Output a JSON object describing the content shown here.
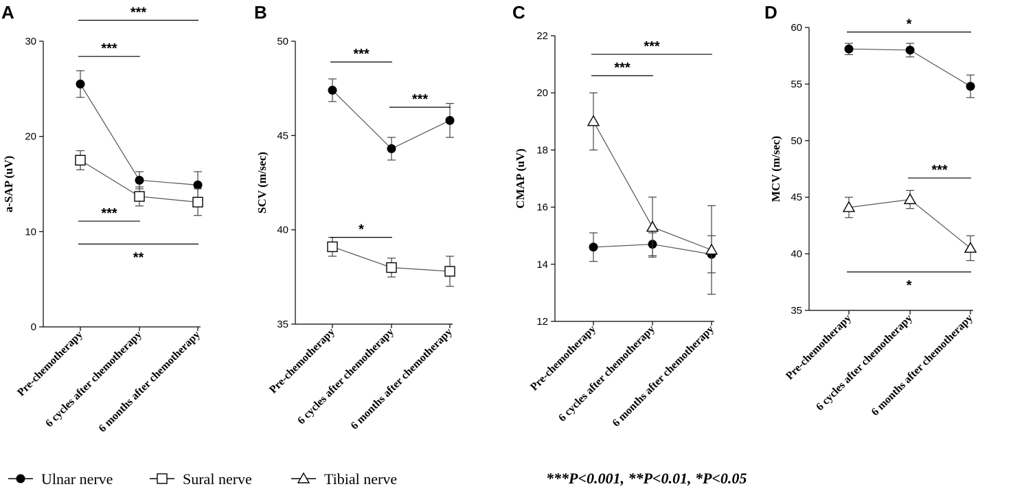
{
  "p_note": "***P<0.001, **P<0.01, *P<0.05",
  "legend": [
    {
      "name": "Ulnar nerve",
      "marker": "circle"
    },
    {
      "name": "Sural nerve",
      "marker": "square"
    },
    {
      "name": "Tibial nerve",
      "marker": "triangle"
    }
  ],
  "chart_data": [
    {
      "panel": "A",
      "type": "line",
      "title": "",
      "ylabel": "a-SAP  (uV)",
      "xlabel": "",
      "categories": [
        "Pre-chemotherapy",
        "6 cycles after chemotherapy",
        "6 months after chemotherapy"
      ],
      "ylim": [
        0,
        30
      ],
      "yticks": [
        0,
        10,
        20,
        30
      ],
      "series": [
        {
          "name": "Ulnar nerve",
          "marker": "circle",
          "values": [
            25.5,
            15.4,
            14.9
          ],
          "errors": [
            1.4,
            0.9,
            1.4
          ]
        },
        {
          "name": "Sural nerve",
          "marker": "square",
          "values": [
            17.5,
            13.7,
            13.1
          ],
          "errors": [
            1.0,
            1.0,
            1.4
          ]
        }
      ],
      "significance": [
        {
          "from": 0,
          "to": 2,
          "label": "***",
          "ref_value": 32.2
        },
        {
          "from": 0,
          "to": 1,
          "label": "***",
          "ref_value": 28.4
        },
        {
          "from": 0,
          "to": 1,
          "label": "***",
          "ref_value": 11.1
        },
        {
          "from": 0,
          "to": 2,
          "label": "**",
          "ref_value": 8.7
        }
      ]
    },
    {
      "panel": "B",
      "type": "line",
      "title": "",
      "ylabel": "SCV  (m/sec)",
      "xlabel": "",
      "categories": [
        "Pre-chemotherapy",
        "6 cycles after chemotherapy",
        "6 months after chemotherapy"
      ],
      "ylim": [
        35,
        50
      ],
      "yticks": [
        35,
        40,
        45,
        50
      ],
      "series": [
        {
          "name": "Ulnar nerve",
          "marker": "circle",
          "values": [
            47.4,
            44.3,
            45.8
          ],
          "errors": [
            0.6,
            0.6,
            0.9
          ]
        },
        {
          "name": "Sural nerve",
          "marker": "square",
          "values": [
            39.1,
            38.0,
            37.8
          ],
          "errors": [
            0.5,
            0.5,
            0.8
          ]
        }
      ],
      "significance": [
        {
          "from": 0,
          "to": 1,
          "label": "***",
          "ref_value": 48.9
        },
        {
          "from": 1,
          "to": 2,
          "label": "***",
          "ref_value": 46.5
        },
        {
          "from": 0,
          "to": 1,
          "label": "*",
          "ref_value": 39.6
        }
      ]
    },
    {
      "panel": "C",
      "type": "line",
      "title": "",
      "ylabel": "CMAP  (uV)",
      "xlabel": "",
      "categories": [
        "Pre-chemotherapy",
        "6 cycles after chemotherapy",
        "6 months after chemotherapy"
      ],
      "ylim": [
        12,
        22
      ],
      "yticks": [
        12,
        14,
        16,
        18,
        20,
        22
      ],
      "series": [
        {
          "name": "Ulnar nerve",
          "marker": "circle",
          "values": [
            14.6,
            14.7,
            14.35
          ],
          "errors": [
            0.5,
            0.4,
            0.65
          ]
        },
        {
          "name": "Tibial nerve",
          "marker": "triangle",
          "values": [
            19.0,
            15.3,
            14.5
          ],
          "errors": [
            1.0,
            1.05,
            1.55
          ]
        }
      ],
      "significance": [
        {
          "from": 0,
          "to": 2,
          "label": "***",
          "ref_value": 21.35
        },
        {
          "from": 0,
          "to": 1,
          "label": "***",
          "ref_value": 20.6
        }
      ]
    },
    {
      "panel": "D",
      "type": "line",
      "title": "",
      "ylabel": "MCV  (m/sec)",
      "xlabel": "",
      "categories": [
        "Pre-chemotherapy",
        "6 cycles after chemotherapy",
        "6 months after chemotherapy"
      ],
      "ylim": [
        35,
        60
      ],
      "yticks": [
        35,
        40,
        45,
        50,
        55,
        60
      ],
      "series": [
        {
          "name": "Ulnar nerve",
          "marker": "circle",
          "values": [
            58.1,
            58.0,
            54.8
          ],
          "errors": [
            0.5,
            0.6,
            1.0
          ]
        },
        {
          "name": "Tibial nerve",
          "marker": "triangle",
          "values": [
            44.1,
            44.8,
            40.5
          ],
          "errors": [
            0.9,
            0.8,
            1.1
          ]
        }
      ],
      "significance": [
        {
          "from": 0,
          "to": 2,
          "label": "*",
          "ref_value": 59.6
        },
        {
          "from": 1,
          "to": 2,
          "label": "***",
          "ref_value": 46.7
        },
        {
          "from": 0,
          "to": 2,
          "label": "*",
          "ref_value": 38.4
        }
      ]
    }
  ]
}
